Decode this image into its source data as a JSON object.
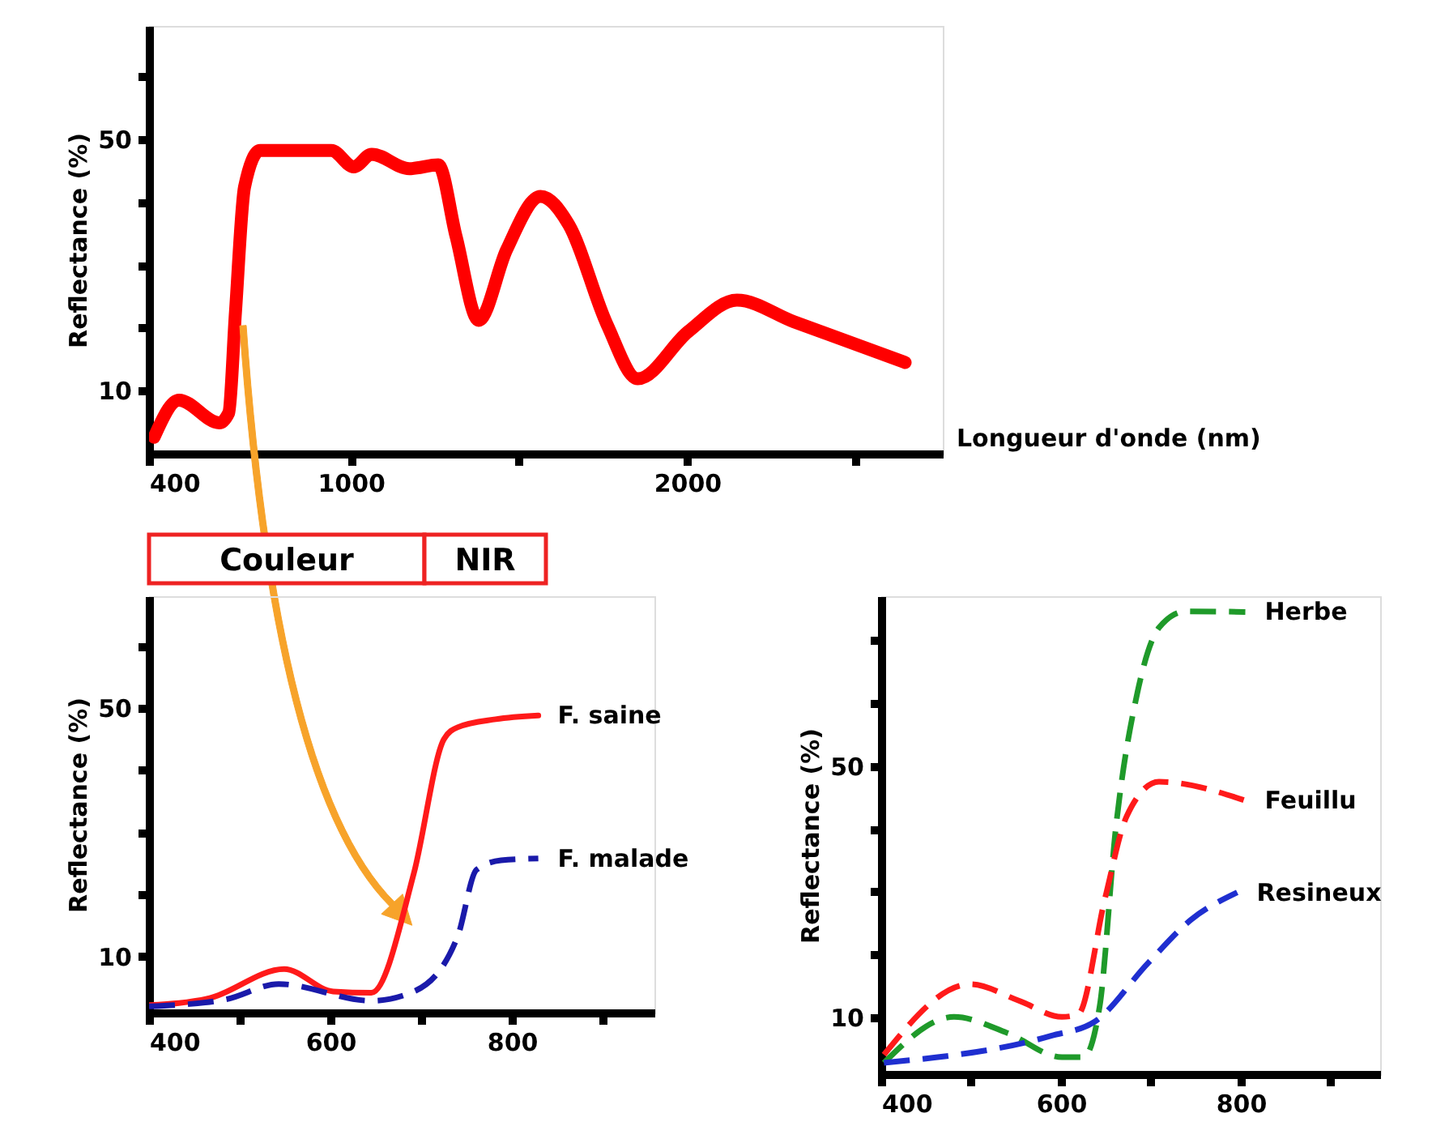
{
  "chart_data": [
    {
      "type": "line",
      "xlabel": "Longueur d'onde (nm)",
      "ylabel": "Reflectance (%)",
      "xlim": [
        400,
        2760
      ],
      "ylim": [
        0,
        68
      ],
      "xticks": [
        400,
        1000,
        {
          "value": 1500,
          "label": null
        },
        2000,
        {
          "value": 2500,
          "label": null
        }
      ],
      "yticks": [
        10,
        {
          "value": 20,
          "label": null
        },
        {
          "value": 30,
          "label": null
        },
        {
          "value": 40,
          "label": null
        },
        50,
        {
          "value": 60,
          "label": null
        }
      ],
      "grid": false,
      "legend": false,
      "line_style": "solid",
      "series": [
        {
          "color": "#ff0000",
          "x": [
            415,
            489,
            609,
            637,
            657,
            684,
            730,
            942,
            1009,
            1062,
            1174,
            1260,
            1313,
            1380,
            1463,
            1564,
            1648,
            1762,
            1853,
            2003,
            2148,
            2316,
            2648
          ],
          "values": [
            2.6,
            8.5,
            4.9,
            6.5,
            22.5,
            42.4,
            48.2,
            48.2,
            45.6,
            47.6,
            45.3,
            45.9,
            34.5,
            21.2,
            32.4,
            40.9,
            36.4,
            20.5,
            11.9,
            19.4,
            24.4,
            21,
            14.5
          ]
        }
      ]
    },
    {
      "type": "line",
      "ylabel": "Reflectance (%)",
      "xlim": [
        400,
        957
      ],
      "ylim": [
        1,
        68
      ],
      "xticks": [
        400,
        {
          "value": 500,
          "label": null
        },
        600,
        {
          "value": 700,
          "label": null
        },
        800,
        {
          "value": 900,
          "label": null
        }
      ],
      "yticks": [
        10,
        {
          "value": 20,
          "label": null
        },
        {
          "value": 30,
          "label": null
        },
        {
          "value": 40,
          "label": null
        },
        50,
        {
          "value": 60,
          "label": null
        }
      ],
      "grid": false,
      "legend": false,
      "annotations": [
        "Couleur",
        "NIR"
      ],
      "series": [
        {
          "name": "F. saine",
          "color": "#ff1a1a",
          "line_style": "solid",
          "x": [
            400,
            466,
            549,
            603,
            645,
            692,
            725,
            740,
            782,
            829
          ],
          "values": [
            2.2,
            3.3,
            8.0,
            4.4,
            4.2,
            23.5,
            45,
            46.9,
            48.2,
            48.8
          ]
        },
        {
          "name": "F. malade",
          "color": "#1a1aaa",
          "line_style": "dashed",
          "x": [
            400,
            484,
            543,
            645,
            692,
            740,
            761,
            788,
            829
          ],
          "values": [
            2.0,
            3.1,
            5.6,
            2.9,
            4.4,
            13.2,
            24,
            25.5,
            25.8
          ]
        }
      ]
    },
    {
      "type": "line",
      "ylabel": "Reflectance (%)",
      "xlim": [
        400,
        955
      ],
      "ylim": [
        1,
        77
      ],
      "xticks": [
        400,
        {
          "value": 500,
          "label": null
        },
        600,
        {
          "value": 700,
          "label": null
        },
        800,
        {
          "value": 900,
          "label": null
        }
      ],
      "yticks": [
        10,
        {
          "value": 20,
          "label": null
        },
        {
          "value": 30,
          "label": null
        },
        {
          "value": 40,
          "label": null
        },
        50,
        {
          "value": 60,
          "label": null
        },
        {
          "value": 70,
          "label": null
        }
      ],
      "grid": false,
      "legend": false,
      "line_style": "dashed",
      "series": [
        {
          "name": "Herbe",
          "color": "#1f9a2a",
          "x": [
            403,
            481,
            541,
            601,
            625,
            643,
            661,
            685,
            709,
            739,
            805
          ],
          "values": [
            2.8,
            10.1,
            7.5,
            3.7,
            3.7,
            11.8,
            40.2,
            61.7,
            72,
            74.6,
            74.5
          ]
        },
        {
          "name": "Feuillu",
          "color": "#ff1a1a",
          "x": [
            403,
            499,
            553,
            601,
            619,
            649,
            673,
            709,
            805
          ],
          "values": [
            4.1,
            15.3,
            12.7,
            10.1,
            10.5,
            29,
            42,
            47.5,
            44.5
          ]
        },
        {
          "name": "Resineux",
          "color": "#1f2fd0",
          "x": [
            403,
            589,
            637,
            697,
            745,
            796
          ],
          "values": [
            2.8,
            7.1,
            9.3,
            18.7,
            25.6,
            29.9
          ]
        }
      ]
    }
  ]
}
